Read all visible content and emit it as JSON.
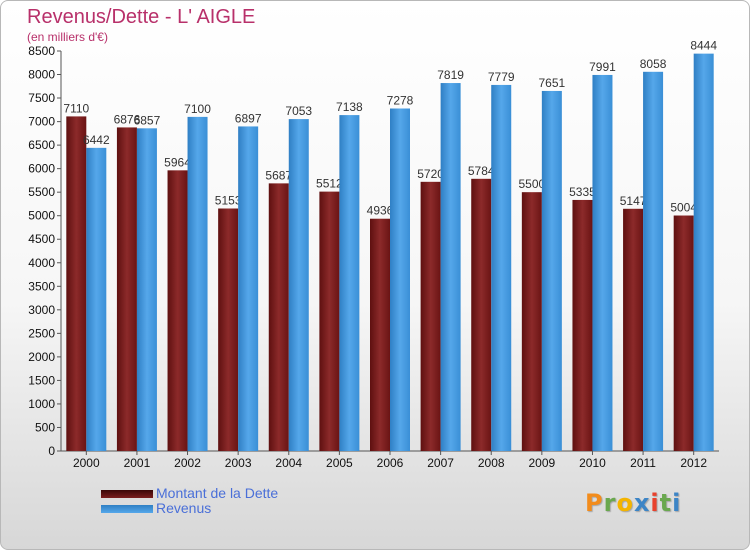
{
  "title": "Revenus/Dette - L' AIGLE",
  "subtitle": "(en milliers d'€)",
  "logo": {
    "text": "Proxiti",
    "letter_colors": [
      "#f28c1c",
      "#6aa84f",
      "#f4b400",
      "#3d85c6",
      "#e8412c",
      "#6aa84f",
      "#3d85c6"
    ]
  },
  "colors": {
    "dette": "#7a1e1e",
    "revenus": "#3a8fd6",
    "title": "#b8306a",
    "legend_text": "#4a6fd8"
  },
  "chart_data": {
    "type": "bar",
    "categories": [
      "2000",
      "2001",
      "2002",
      "2003",
      "2004",
      "2005",
      "2006",
      "2007",
      "2008",
      "2009",
      "2010",
      "2011",
      "2012"
    ],
    "series": [
      {
        "name": "Montant de la Dette",
        "color": "#7a1e1e",
        "values": [
          7110,
          6876,
          5964,
          5153,
          5687,
          5512,
          4936,
          5720,
          5784,
          5500,
          5335,
          5147,
          5004
        ]
      },
      {
        "name": "Revenus",
        "color": "#3a8fd6",
        "values": [
          6442,
          6857,
          7100,
          6897,
          7053,
          7138,
          7278,
          7819,
          7779,
          7651,
          7991,
          8058,
          8444
        ]
      }
    ],
    "y_ticks": [
      "0",
      "500",
      "1000",
      "1500",
      "2000",
      "2500",
      "3000",
      "3500",
      "4000",
      "4500",
      "5000",
      "5500",
      "6000",
      "6500",
      "7000",
      "7500",
      "8000",
      "8500"
    ],
    "ylim": [
      0,
      8500
    ],
    "grid": false,
    "legend_position": "bottom-left"
  }
}
